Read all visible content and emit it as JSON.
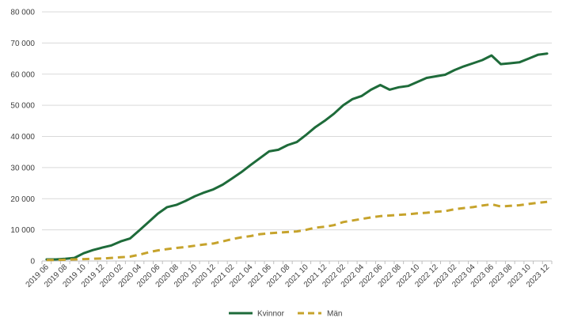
{
  "chart_data": {
    "type": "line",
    "title": "",
    "xlabel": "",
    "ylabel": "",
    "ylim": [
      0,
      80000
    ],
    "y_ticks": [
      "0",
      "10 000",
      "20 000",
      "30 000",
      "40 000",
      "50 000",
      "60 000",
      "70 000",
      "80 000"
    ],
    "grid": "horizontal",
    "legend_position": "bottom",
    "x_tick_labels": [
      "2019 06",
      "2019 08",
      "2019 10",
      "2019 12",
      "2020 02",
      "2020 04",
      "2020 06",
      "2020 08",
      "2020 10",
      "2020 12",
      "2021 02",
      "2021 04",
      "2021 06",
      "2021 08",
      "2021 10",
      "2021 12",
      "2022 02",
      "2022 04",
      "2022 06",
      "2022 08",
      "2022 10",
      "2022 12",
      "2023 02",
      "2023 04",
      "2023 06",
      "2023 08",
      "2023 10",
      "2023 12"
    ],
    "x": [
      "2019 06",
      "2019 07",
      "2019 08",
      "2019 09",
      "2019 10",
      "2019 11",
      "2019 12",
      "2020 01",
      "2020 02",
      "2020 03",
      "2020 04",
      "2020 05",
      "2020 06",
      "2020 07",
      "2020 08",
      "2020 09",
      "2020 10",
      "2020 11",
      "2020 12",
      "2021 01",
      "2021 02",
      "2021 03",
      "2021 04",
      "2021 05",
      "2021 06",
      "2021 07",
      "2021 08",
      "2021 09",
      "2021 10",
      "2021 11",
      "2021 12",
      "2022 01",
      "2022 02",
      "2022 03",
      "2022 04",
      "2022 05",
      "2022 06",
      "2022 07",
      "2022 08",
      "2022 09",
      "2022 10",
      "2022 11",
      "2022 12",
      "2023 01",
      "2023 02",
      "2023 03",
      "2023 04",
      "2023 05",
      "2023 06",
      "2023 07",
      "2023 08",
      "2023 09",
      "2023 10",
      "2023 11",
      "2023 12"
    ],
    "series": [
      {
        "name": "Kvinnor",
        "color": "#1e6b3a",
        "dash": "solid",
        "values": [
          500,
          500,
          700,
          1000,
          2500,
          3500,
          4300,
          5000,
          6300,
          7200,
          9800,
          12500,
          15200,
          17300,
          18000,
          19300,
          20800,
          22000,
          23000,
          24500,
          26500,
          28500,
          30800,
          33000,
          35200,
          35700,
          37200,
          38200,
          40500,
          43000,
          45000,
          47300,
          50000,
          52000,
          53000,
          55000,
          56500,
          55000,
          55800,
          56200,
          57500,
          58800,
          59300,
          59800,
          61300,
          62500,
          63500,
          64500,
          66000,
          63200,
          63500,
          63800,
          65000,
          66200,
          66600
        ]
      },
      {
        "name": "Män",
        "color": "#c6a32c",
        "dash": "dashed",
        "values": [
          300,
          300,
          400,
          500,
          600,
          700,
          800,
          1000,
          1200,
          1400,
          2000,
          2800,
          3400,
          3800,
          4200,
          4500,
          4900,
          5300,
          5600,
          6300,
          7000,
          7600,
          8000,
          8600,
          8900,
          9100,
          9300,
          9500,
          10000,
          10700,
          11000,
          11500,
          12500,
          13000,
          13500,
          14000,
          14400,
          14600,
          14800,
          15000,
          15300,
          15500,
          15800,
          16000,
          16600,
          17000,
          17300,
          17800,
          18200,
          17500,
          17700,
          17900,
          18300,
          18700,
          19000
        ]
      }
    ]
  }
}
